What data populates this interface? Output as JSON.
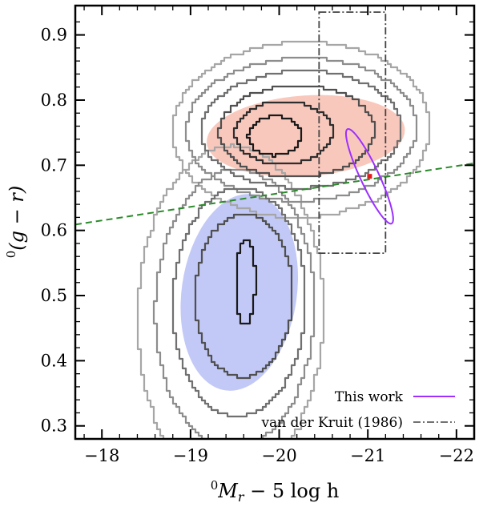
{
  "chart_data": {
    "type": "contour",
    "title": "",
    "xlabel_parts": {
      "sup": "0",
      "main": "M",
      "sub": "r",
      "rest": " − 5 log h"
    },
    "ylabel_parts": {
      "sup": "0",
      "main": "(g − r)"
    },
    "xlim": [
      -17.7,
      -22.2
    ],
    "ylim": [
      0.28,
      0.945
    ],
    "x_ticks": [
      {
        "value": -18,
        "label": "−18"
      },
      {
        "value": -19,
        "label": "−19"
      },
      {
        "value": -20,
        "label": "−20"
      },
      {
        "value": -21,
        "label": "−21"
      },
      {
        "value": -22,
        "label": "−22"
      }
    ],
    "y_ticks": [
      {
        "value": 0.3,
        "label": "0.3"
      },
      {
        "value": 0.4,
        "label": "0.4"
      },
      {
        "value": 0.5,
        "label": "0.5"
      },
      {
        "value": 0.6,
        "label": "0.6"
      },
      {
        "value": 0.7,
        "label": "0.7"
      },
      {
        "value": 0.8,
        "label": "0.8"
      },
      {
        "value": 0.9,
        "label": "0.9"
      }
    ],
    "regions": [
      {
        "name": "red-sequence-ellipse",
        "color": "#f9c8bc",
        "cx": -20.3,
        "cy": 0.745,
        "rx": 1.12,
        "ry": 0.062,
        "angle_deg": -4
      },
      {
        "name": "blue-cloud-ellipse",
        "color": "#c2c9f6",
        "cx": -19.55,
        "cy": 0.505,
        "rx": 0.65,
        "ry": 0.152,
        "angle_deg": 8
      }
    ],
    "divider_line": {
      "color": "#2a8a2a",
      "style": "dashed",
      "x": [
        -17.7,
        -22.2
      ],
      "y": [
        0.609,
        0.703
      ]
    },
    "contour_sets": [
      {
        "level": 1,
        "color": "#a6a6a6",
        "red": {
          "cx": -20.25,
          "cy": 0.755,
          "rx": 1.45,
          "ry": 0.135
        },
        "blue": {
          "cx": -19.45,
          "cy": 0.47,
          "rx": 1.05,
          "ry": 0.26
        }
      },
      {
        "level": 2,
        "color": "#8d8d8d",
        "red": {
          "cx": -20.25,
          "cy": 0.755,
          "rx": 1.3,
          "ry": 0.11
        },
        "blue": {
          "cx": -19.5,
          "cy": 0.48,
          "rx": 0.9,
          "ry": 0.215
        }
      },
      {
        "level": 3,
        "color": "#707070",
        "red": {
          "cx": -20.25,
          "cy": 0.755,
          "rx": 1.13,
          "ry": 0.09
        },
        "blue": {
          "cx": -19.55,
          "cy": 0.49,
          "rx": 0.75,
          "ry": 0.175
        }
      },
      {
        "level": 4,
        "color": "#505050",
        "red": {
          "cx": -20.2,
          "cy": 0.752,
          "rx": 0.88,
          "ry": 0.07
        },
        "blue": {
          "cx": -19.6,
          "cy": 0.5,
          "rx": 0.55,
          "ry": 0.125
        }
      },
      {
        "level": 5,
        "color": "#2e2e2e",
        "red": {
          "cx": -20.05,
          "cy": 0.75,
          "rx": 0.55,
          "ry": 0.048
        },
        "blue": null
      },
      {
        "level": 6,
        "color": "#1a1a1a",
        "red": {
          "cx": -19.95,
          "cy": 0.745,
          "rx": 0.3,
          "ry": 0.03
        },
        "blue": {
          "cx": -19.62,
          "cy": 0.52,
          "rx": 0.11,
          "ry": 0.065
        }
      }
    ],
    "vdk_box": {
      "x": [
        -20.45,
        -21.2
      ],
      "y": [
        0.565,
        0.935
      ],
      "color": "#444444",
      "style": "dash-dot"
    },
    "this_work": {
      "color": "#9b30ff",
      "cx": -21.02,
      "cy": 0.683,
      "rx": 0.105,
      "ry": 0.4,
      "angle_deg": -25
    },
    "this_work_point": {
      "x": -21.02,
      "y": 0.683,
      "color": "#e11b1b"
    },
    "legend": [
      {
        "label": "This work",
        "color": "#9b30ff",
        "style": "solid"
      },
      {
        "label": "van der Kruit (1986)",
        "color": "#444444",
        "style": "dash-dot"
      }
    ]
  }
}
